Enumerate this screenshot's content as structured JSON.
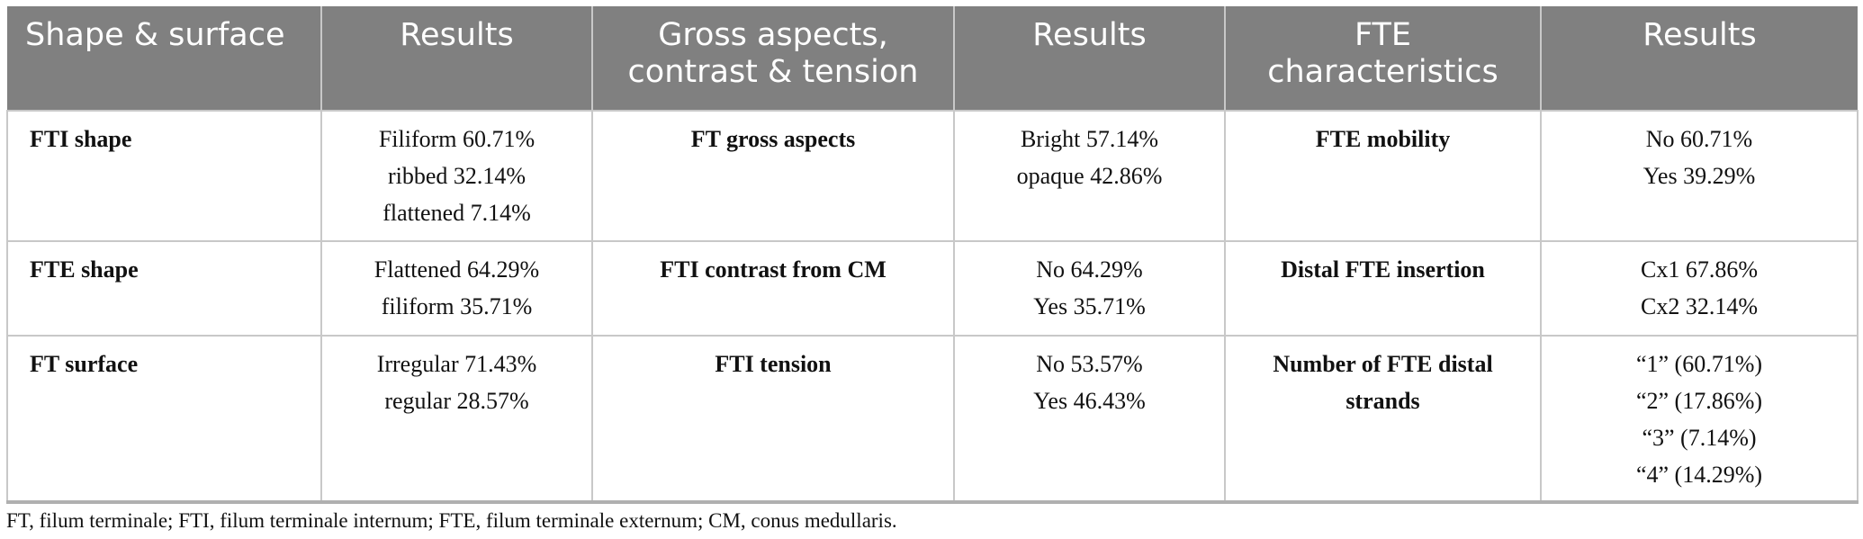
{
  "table": {
    "header": [
      [
        "Shape & surface"
      ],
      [
        "Results"
      ],
      [
        "Gross aspects,",
        "contrast & tension"
      ],
      [
        "Results"
      ],
      [
        "FTE",
        "characteristics"
      ],
      [
        "Results"
      ]
    ],
    "rows": [
      [
        [
          "FTI shape"
        ],
        [
          "Filiform 60.71%",
          "ribbed 32.14%",
          "flattened 7.14%"
        ],
        [
          "FT gross aspects"
        ],
        [
          "Bright 57.14%",
          "opaque 42.86%"
        ],
        [
          "FTE mobility"
        ],
        [
          "No 60.71%",
          "Yes 39.29%"
        ]
      ],
      [
        [
          "FTE shape"
        ],
        [
          "Flattened 64.29%",
          "filiform 35.71%"
        ],
        [
          "FTI contrast from CM"
        ],
        [
          "No 64.29%",
          "Yes 35.71%"
        ],
        [
          "Distal FTE insertion"
        ],
        [
          "Cx1 67.86%",
          "Cx2 32.14%"
        ]
      ],
      [
        [
          "FT surface"
        ],
        [
          "Irregular 71.43%",
          "regular 28.57%"
        ],
        [
          "FTI tension"
        ],
        [
          "No 53.57%",
          "Yes 46.43%"
        ],
        [
          "Number of FTE distal strands"
        ],
        [
          "“1” (60.71%)",
          "“2” (17.86%)",
          "“3” (7.14%)",
          "“4” (14.29%)"
        ]
      ]
    ]
  },
  "footnote": "FT, filum terminale; FTI, filum terminale internum; FTE, filum terminale externum; CM, conus medullaris."
}
